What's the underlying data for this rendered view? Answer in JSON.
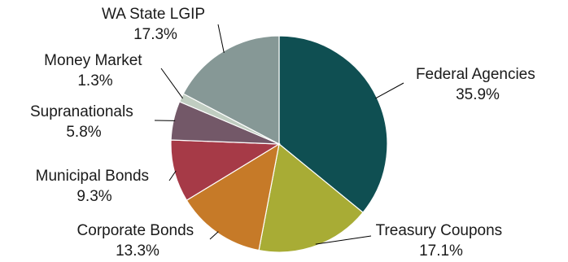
{
  "chart_data": {
    "type": "pie",
    "title": "",
    "legend": "none",
    "start_angle_deg": 0,
    "direction": "clockwise",
    "slices": [
      {
        "name": "Federal Agencies",
        "value": 35.9,
        "label": "35.9%",
        "color": "#0f4f52"
      },
      {
        "name": "Treasury Coupons",
        "value": 17.1,
        "label": "17.1%",
        "color": "#a8ac35"
      },
      {
        "name": "Corporate Bonds",
        "value": 13.3,
        "label": "13.3%",
        "color": "#c67a28"
      },
      {
        "name": "Municipal Bonds",
        "value": 9.3,
        "label": "9.3%",
        "color": "#a63a47"
      },
      {
        "name": "Supranationals",
        "value": 5.8,
        "label": "5.8%",
        "color": "#735868"
      },
      {
        "name": "Money Market",
        "value": 1.3,
        "label": "1.3%",
        "color": "#c0cdc1"
      },
      {
        "name": "WA State LGIP",
        "value": 17.3,
        "label": "17.3%",
        "color": "#869896"
      }
    ]
  }
}
